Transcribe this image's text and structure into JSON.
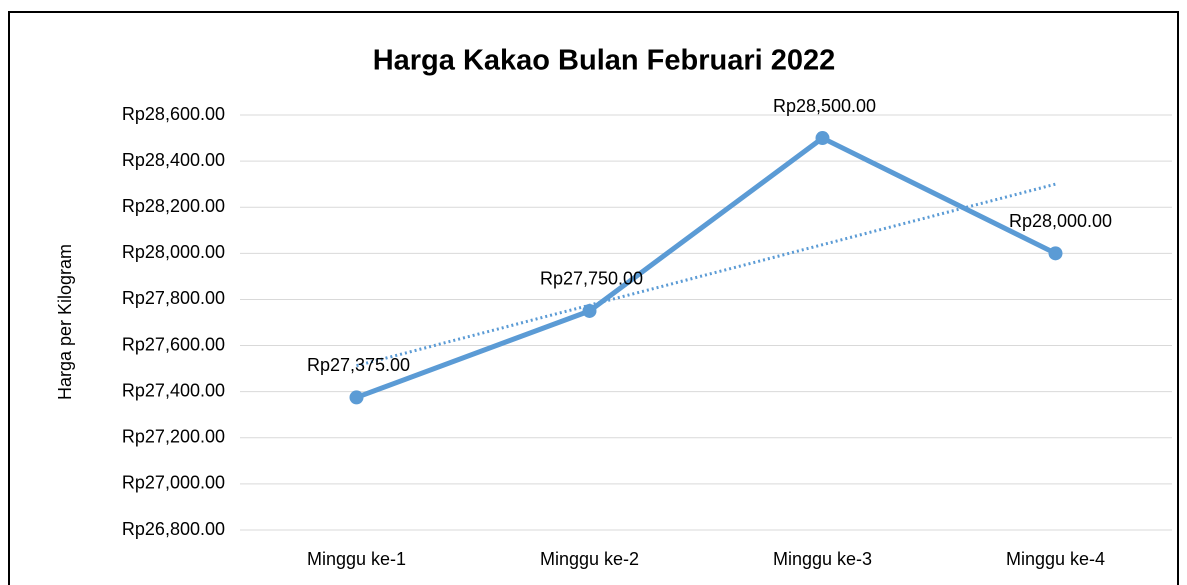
{
  "chart_data": {
    "type": "line",
    "title": "Harga Kakao Bulan Februari 2022",
    "y_label": "Harga per Kilogram",
    "categories": [
      "Minggu ke-1",
      "Minggu ke-2",
      "Minggu ke-3",
      "Minggu ke-4"
    ],
    "series": [
      {
        "name": "Harga",
        "color": "#5b9bd5",
        "values": [
          27375,
          27750,
          28500,
          28000
        ],
        "value_labels": [
          "Rp27,375.00",
          "Rp27,750.00",
          "Rp28,500.00",
          "Rp28,000.00"
        ]
      }
    ],
    "trendline": "linear",
    "ylim": [
      26800,
      28600
    ],
    "yticks": [
      {
        "value": 26800,
        "label": "Rp26,800.00"
      },
      {
        "value": 27000,
        "label": "Rp27,000.00"
      },
      {
        "value": 27200,
        "label": "Rp27,200.00"
      },
      {
        "value": 27400,
        "label": "Rp27,400.00"
      },
      {
        "value": 27600,
        "label": "Rp27,600.00"
      },
      {
        "value": 27800,
        "label": "Rp27,800.00"
      },
      {
        "value": 28000,
        "label": "Rp28,000.00"
      },
      {
        "value": 28200,
        "label": "Rp28,200.00"
      },
      {
        "value": 28400,
        "label": "Rp28,400.00"
      },
      {
        "value": 28600,
        "label": "Rp28,600.00"
      }
    ],
    "grid": true
  }
}
